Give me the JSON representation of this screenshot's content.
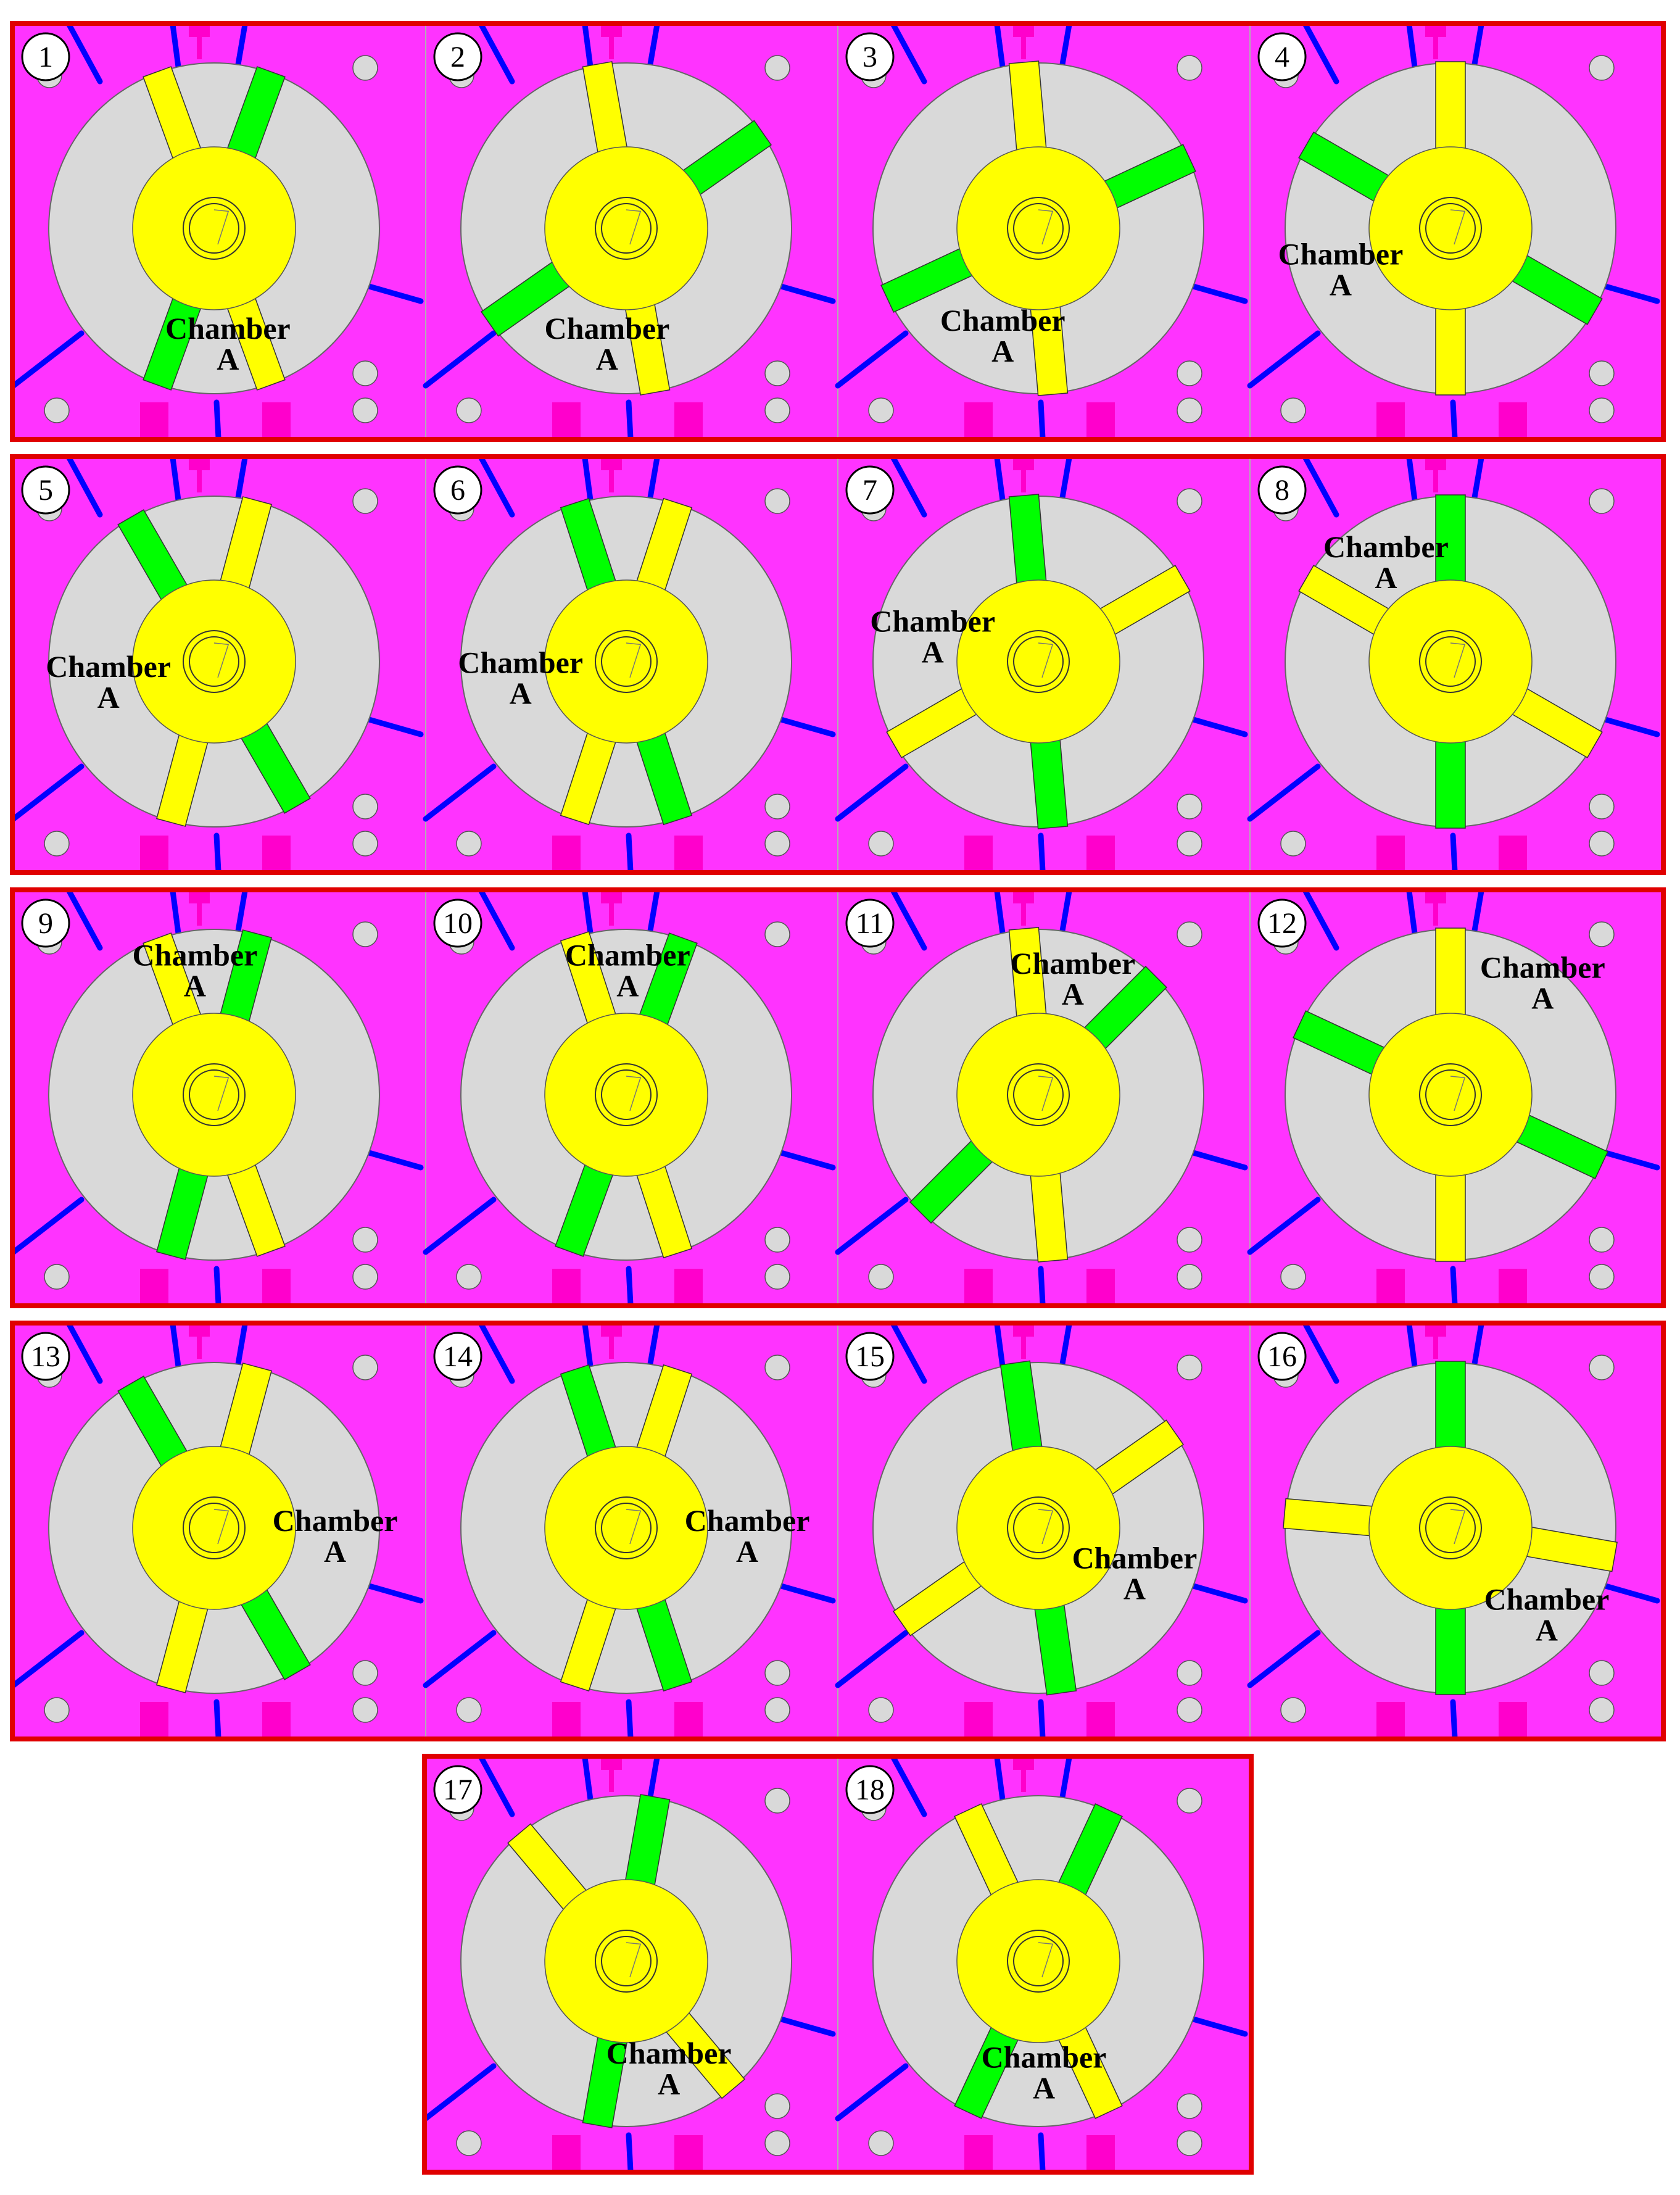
{
  "figure": {
    "chamber_label_line1": "Chamber",
    "chamber_label_line2": "A",
    "colors": {
      "housing": "#ff33ff",
      "rotor_disk": "#d9d9d9",
      "hub": "#ffff00",
      "vane_a": "#ffff00",
      "vane_b": "#00ff00",
      "port_lines": "#0000ff",
      "fittings": "#ff00cc",
      "group_border": "#e00000",
      "outline": "#000000"
    },
    "panels": [
      {
        "number": "1"
      },
      {
        "number": "2"
      },
      {
        "number": "3"
      },
      {
        "number": "4"
      },
      {
        "number": "5"
      },
      {
        "number": "6"
      },
      {
        "number": "7"
      },
      {
        "number": "8"
      },
      {
        "number": "9"
      },
      {
        "number": "10"
      },
      {
        "number": "11"
      },
      {
        "number": "12"
      },
      {
        "number": "13"
      },
      {
        "number": "14"
      },
      {
        "number": "15"
      },
      {
        "number": "16"
      },
      {
        "number": "17"
      },
      {
        "number": "18"
      }
    ]
  }
}
